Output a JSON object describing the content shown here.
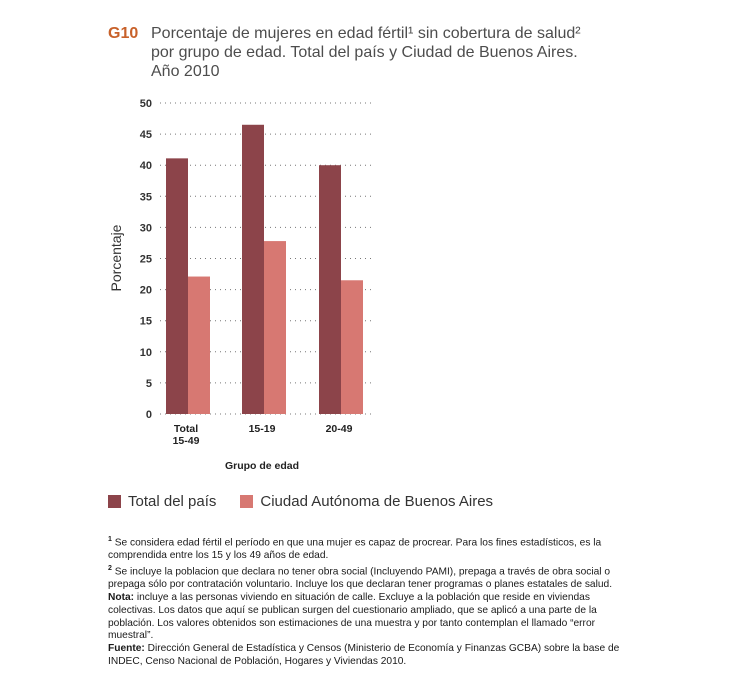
{
  "figure": {
    "label": "G10",
    "title": "Porcentaje de mujeres en edad fértil¹ sin cobertura de salud²\npor grupo de edad. Total del país y Ciudad de Buenos Aires.\nAño 2010"
  },
  "chart_data": {
    "type": "bar",
    "categories": [
      "Total\n15-49",
      "15-19",
      "20-49"
    ],
    "series": [
      {
        "name": "Total del país",
        "values": [
          41.1,
          46.5,
          40.0
        ],
        "color": "#8c444a"
      },
      {
        "name": "Ciudad Autónoma de Buenos Aires",
        "values": [
          22.1,
          27.8,
          21.5
        ],
        "color": "#d77872"
      }
    ],
    "ylabel": "Porcentaje",
    "xlabel": "Grupo de edad",
    "ylim": [
      0,
      50
    ],
    "yticks": [
      0,
      5,
      10,
      15,
      20,
      25,
      30,
      35,
      40,
      45,
      50
    ],
    "grid": "dotted horizontal",
    "legend": "bottom"
  },
  "notes": [
    {
      "sup": "1",
      "label": "",
      "text": " Se considera edad fértil el período en que una mujer es capaz de procrear. Para los fines estadísticos, es la comprendida entre los 15 y los 49 años de edad."
    },
    {
      "sup": "2",
      "label": "",
      "text": " Se incluye la poblacion que declara no tener obra social (Incluyendo PAMI),  prepaga a través de obra social o  prepaga sólo por contratación voluntario. Incluye los que declaran tener programas o planes estatales de salud."
    },
    {
      "sup": "",
      "label": "Nota:",
      "text": " incluye a las personas viviendo en situación de calle. Excluye a la población que reside en viviendas colectivas. Los datos que aquí se publican surgen del cuestionario ampliado, que se aplicó a una parte de la población. Los valores obtenidos son estimaciones de una muestra y por tanto contemplan el llamado “error muestral”."
    },
    {
      "sup": "",
      "label": "Fuente:",
      "text": " Dirección General de Estadística y Censos (Ministerio de Economía y Finanzas GCBA) sobre la base de INDEC, Censo Nacional de Población, Hogares y Viviendas 2010."
    }
  ]
}
